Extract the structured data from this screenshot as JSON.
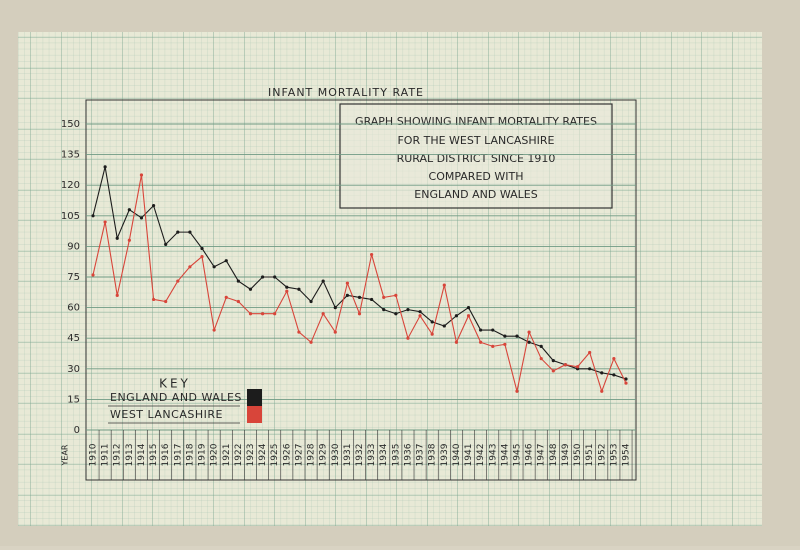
{
  "chart_data": {
    "type": "line",
    "title": "INFANT MORTALITY RATE",
    "annotation": [
      "GRAPH SHOWING INFANT MORTALITY RATES",
      "FOR THE WEST LANCASHIRE",
      "RURAL DISTRICT SINCE 1910",
      "COMPARED WITH",
      "ENGLAND AND WALES"
    ],
    "key_title": "KEY",
    "x_label": "YEAR",
    "categories": [
      "1910",
      "1911",
      "1912",
      "1913",
      "1914",
      "1915",
      "1916",
      "1917",
      "1918",
      "1919",
      "1920",
      "1921",
      "1922",
      "1923",
      "1924",
      "1925",
      "1926",
      "1927",
      "1928",
      "1929",
      "1930",
      "1931",
      "1932",
      "1933",
      "1934",
      "1935",
      "1936",
      "1937",
      "1938",
      "1939",
      "1940",
      "1941",
      "1942",
      "1943",
      "1944",
      "1945",
      "1946",
      "1947",
      "1948",
      "1949",
      "1950",
      "1951",
      "1952",
      "1953",
      "1954"
    ],
    "series": [
      {
        "name": "ENGLAND AND WALES",
        "color": "#1c1c1c",
        "values": [
          105,
          129,
          94,
          108,
          104,
          110,
          91,
          97,
          97,
          89,
          80,
          83,
          73,
          69,
          75,
          75,
          70,
          69,
          63,
          73,
          60,
          66,
          65,
          64,
          59,
          57,
          59,
          58,
          53,
          51,
          56,
          60,
          49,
          49,
          46,
          46,
          43,
          41,
          34,
          32,
          30,
          30,
          28,
          27,
          25
        ]
      },
      {
        "name": "WEST LANCASHIRE",
        "color": "#d8453a",
        "values": [
          76,
          102,
          66,
          93,
          125,
          64,
          63,
          73,
          80,
          85,
          49,
          65,
          63,
          57,
          57,
          57,
          68,
          48,
          43,
          57,
          48,
          72,
          57,
          86,
          65,
          66,
          45,
          56,
          47,
          71,
          43,
          56,
          43,
          41,
          42,
          19,
          48,
          35,
          29,
          32,
          31,
          38,
          19,
          35,
          23
        ]
      }
    ],
    "ylim": [
      0,
      160
    ],
    "yticks": [
      0,
      15,
      30,
      45,
      60,
      75,
      90,
      105,
      120,
      135,
      150
    ],
    "grid": true
  }
}
